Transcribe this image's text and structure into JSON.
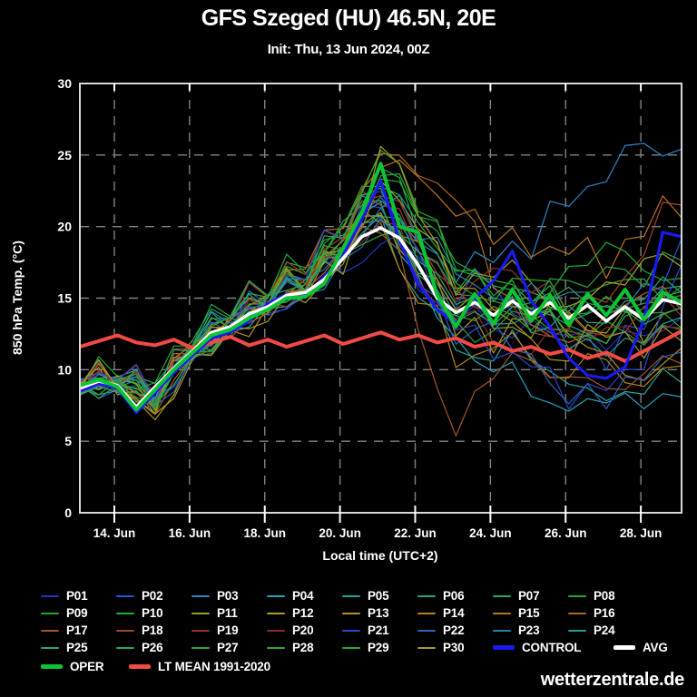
{
  "header": {
    "title": "GFS Szeged (HU) 46.5N, 20E",
    "subtitle": "Init: Thu, 13 Jun 2024, 00Z"
  },
  "footer": {
    "watermark": "wetterzentrale.de"
  },
  "chart_data": {
    "type": "line",
    "title": "GFS Szeged (HU) 46.5N, 20E",
    "subtitle": "Init: Thu, 13 Jun 2024, 00Z",
    "xlabel": "Local time (UTC+2)",
    "ylabel": "850 hPa Temp. (°C)",
    "ylim": [
      0,
      30
    ],
    "xlim_days": [
      0,
      16
    ],
    "grid": "dashed",
    "background": "#000000",
    "yticks": [
      {
        "label": "30",
        "v": 30
      },
      {
        "label": "25",
        "v": 25
      },
      {
        "label": "20",
        "v": 20
      },
      {
        "label": "15",
        "v": 15
      },
      {
        "label": "10",
        "v": 10
      },
      {
        "label": "5",
        "v": 5
      },
      {
        "label": "0",
        "v": 0
      }
    ],
    "ygrid": [
      5,
      10,
      15,
      20,
      25
    ],
    "xticks": [
      {
        "label": "14. Jun",
        "t": 0.9167
      },
      {
        "label": "16. Jun",
        "t": 2.9167
      },
      {
        "label": "18. Jun",
        "t": 4.9167
      },
      {
        "label": "20. Jun",
        "t": 6.9167
      },
      {
        "label": "22. Jun",
        "t": 8.9167
      },
      {
        "label": "24. Jun",
        "t": 10.9167
      },
      {
        "label": "26. Jun",
        "t": 12.9167
      },
      {
        "label": "28. Jun",
        "t": 14.9167
      }
    ],
    "series": [
      {
        "name": "P01",
        "color": "#2633c4",
        "kind": "member",
        "step": 1,
        "values": [
          8.6,
          9.0,
          8.0,
          11.0,
          12.8,
          14.2,
          15.2,
          17.2,
          19.0,
          16.0,
          13.5,
          12.8,
          13.5,
          12.0,
          11.5,
          12.8,
          13.9
        ]
      },
      {
        "name": "P02",
        "color": "#2750d2",
        "kind": "member",
        "step": 1,
        "values": [
          8.8,
          8.7,
          7.6,
          11.5,
          13.2,
          14.0,
          15.8,
          18.5,
          21.0,
          17.5,
          14.5,
          15.5,
          13.0,
          11.0,
          10.2,
          12.5,
          19.5
        ]
      },
      {
        "name": "P03",
        "color": "#2d86c4",
        "kind": "member",
        "step": 1,
        "values": [
          8.7,
          9.2,
          8.5,
          11.2,
          13.4,
          14.8,
          15.0,
          18.0,
          22.5,
          19.0,
          16.0,
          17.5,
          18.0,
          21.5,
          23.0,
          25.8,
          25.0
        ]
      },
      {
        "name": "P04",
        "color": "#28a3c0",
        "kind": "member",
        "step": 1,
        "values": [
          8.5,
          8.8,
          7.2,
          10.8,
          12.6,
          14.6,
          15.6,
          17.5,
          21.5,
          16.5,
          12.0,
          9.5,
          8.5,
          7.5,
          8.0,
          7.0,
          8.5
        ]
      },
      {
        "name": "P05",
        "color": "#29a49b",
        "kind": "member",
        "step": 1,
        "values": [
          8.9,
          9.1,
          7.8,
          11.4,
          13.1,
          14.3,
          15.3,
          18.2,
          20.5,
          15.0,
          11.5,
          10.5,
          11.0,
          9.0,
          7.5,
          8.5,
          9.0
        ]
      },
      {
        "name": "P06",
        "color": "#2aa67d",
        "kind": "member",
        "step": 1,
        "values": [
          8.6,
          8.9,
          8.2,
          11.6,
          13.3,
          15.0,
          16.2,
          19.0,
          22.0,
          18.0,
          14.0,
          13.0,
          14.5,
          13.5,
          12.0,
          14.0,
          15.5
        ]
      },
      {
        "name": "P07",
        "color": "#29a75c",
        "kind": "member",
        "step": 1,
        "values": [
          8.8,
          9.3,
          8.6,
          11.1,
          12.9,
          14.5,
          16.8,
          20.5,
          24.0,
          19.5,
          15.5,
          14.0,
          15.5,
          16.0,
          14.5,
          15.0,
          16.0
        ]
      },
      {
        "name": "P08",
        "color": "#25a73e",
        "kind": "member",
        "step": 1,
        "values": [
          8.7,
          9.0,
          7.9,
          11.7,
          13.6,
          15.2,
          16.0,
          19.5,
          23.0,
          20.0,
          16.5,
          15.0,
          13.5,
          14.5,
          15.5,
          16.5,
          15.0
        ]
      },
      {
        "name": "P09",
        "color": "#2ea434",
        "kind": "member",
        "step": 1,
        "values": [
          8.6,
          8.8,
          7.4,
          11.3,
          13.0,
          14.1,
          15.9,
          18.8,
          21.8,
          17.0,
          13.0,
          12.5,
          14.0,
          12.5,
          13.5,
          12.0,
          13.0
        ]
      },
      {
        "name": "P10",
        "color": "#1db32c",
        "kind": "member",
        "step": 1,
        "values": [
          8.8,
          9.1,
          8.1,
          11.0,
          12.7,
          14.7,
          16.4,
          19.2,
          23.5,
          21.0,
          17.0,
          16.0,
          14.8,
          17.0,
          18.5,
          17.0,
          16.5
        ]
      },
      {
        "name": "P11",
        "color": "#9aa21e",
        "kind": "member",
        "step": 1,
        "values": [
          8.7,
          8.6,
          6.8,
          10.9,
          12.5,
          13.8,
          15.0,
          17.0,
          20.8,
          18.5,
          14.2,
          13.2,
          12.5,
          14.0,
          13.0,
          12.0,
          14.0
        ]
      },
      {
        "name": "P12",
        "color": "#ad9e1e",
        "kind": "member",
        "step": 1,
        "values": [
          8.9,
          9.2,
          7.0,
          11.2,
          13.2,
          14.9,
          15.7,
          18.3,
          22.8,
          19.8,
          15.0,
          16.5,
          15.8,
          14.5,
          16.0,
          17.5,
          16.8
        ]
      },
      {
        "name": "P13",
        "color": "#b5941a",
        "kind": "member",
        "step": 1,
        "values": [
          8.6,
          8.7,
          6.5,
          10.7,
          12.4,
          14.0,
          15.5,
          17.8,
          21.2,
          16.8,
          12.8,
          11.5,
          13.8,
          12.8,
          11.0,
          9.5,
          11.5
        ]
      },
      {
        "name": "P14",
        "color": "#b78413",
        "kind": "member",
        "step": 1,
        "values": [
          8.8,
          9.0,
          7.5,
          11.5,
          13.5,
          14.4,
          16.1,
          18.6,
          20.2,
          14.5,
          10.5,
          11.8,
          10.5,
          9.5,
          10.8,
          9.0,
          10.0
        ]
      },
      {
        "name": "P15",
        "color": "#bd751c",
        "kind": "member",
        "step": 1,
        "values": [
          8.7,
          8.9,
          7.7,
          11.8,
          13.7,
          15.1,
          16.6,
          19.8,
          23.8,
          23.5,
          20.5,
          19.0,
          17.5,
          18.0,
          16.5,
          19.5,
          21.0
        ]
      },
      {
        "name": "P16",
        "color": "#b2661e",
        "kind": "member",
        "step": 1,
        "values": [
          8.5,
          8.8,
          7.3,
          11.1,
          12.8,
          14.2,
          15.4,
          18.1,
          24.8,
          24.0,
          22.0,
          16.0,
          13.0,
          12.0,
          13.5,
          15.0,
          14.0
        ]
      },
      {
        "name": "P17",
        "color": "#a75822",
        "kind": "member",
        "step": 1,
        "values": [
          8.6,
          9.1,
          7.1,
          10.6,
          12.3,
          13.9,
          15.1,
          17.4,
          19.5,
          13.0,
          5.5,
          9.0,
          10.5,
          9.8,
          8.5,
          9.5,
          10.5
        ]
      },
      {
        "name": "P18",
        "color": "#a04827",
        "kind": "member",
        "step": 1,
        "values": [
          8.8,
          8.9,
          7.8,
          11.4,
          13.1,
          14.6,
          15.8,
          18.9,
          22.2,
          18.8,
          15.2,
          14.2,
          12.2,
          13.2,
          14.8,
          18.0,
          21.5
        ]
      },
      {
        "name": "P19",
        "color": "#963529",
        "kind": "member",
        "step": 1,
        "values": [
          8.7,
          9.0,
          8.4,
          11.6,
          13.4,
          15.3,
          16.3,
          19.4,
          21.6,
          17.8,
          14.8,
          16.8,
          15.5,
          13.8,
          12.5,
          14.5,
          13.5
        ]
      },
      {
        "name": "P20",
        "color": "#8c2b28",
        "kind": "member",
        "step": 1,
        "values": [
          8.5,
          8.7,
          7.6,
          11.0,
          12.6,
          14.1,
          15.6,
          18.4,
          20.0,
          16.2,
          13.8,
          12.0,
          11.5,
          13.0,
          12.8,
          11.5,
          12.5
        ]
      },
      {
        "name": "P21",
        "color": "#2a49cc",
        "kind": "member",
        "step": 1,
        "values": [
          8.9,
          9.2,
          8.2,
          11.3,
          13.3,
          14.8,
          16.5,
          19.6,
          22.6,
          18.2,
          13.2,
          10.8,
          9.8,
          7.2,
          8.8,
          10.0,
          17.0
        ]
      },
      {
        "name": "P22",
        "color": "#2d63bd",
        "kind": "member",
        "step": 1,
        "values": [
          8.6,
          8.8,
          7.3,
          10.9,
          12.9,
          14.3,
          15.2,
          17.6,
          20.4,
          15.8,
          12.2,
          13.5,
          11.2,
          8.0,
          7.0,
          9.5,
          11.0
        ]
      },
      {
        "name": "P23",
        "color": "#2a82aa",
        "kind": "member",
        "step": 1,
        "values": [
          8.8,
          9.1,
          8.0,
          11.2,
          13.0,
          14.9,
          16.0,
          18.7,
          21.4,
          19.2,
          16.8,
          14.8,
          16.2,
          15.2,
          13.8,
          15.8,
          14.8
        ]
      },
      {
        "name": "P24",
        "color": "#2a9c92",
        "kind": "member",
        "step": 1,
        "values": [
          8.7,
          8.9,
          7.5,
          11.5,
          13.2,
          14.5,
          15.7,
          18.0,
          20.6,
          16.6,
          13.6,
          12.8,
          14.2,
          11.8,
          10.5,
          12.2,
          13.8
        ]
      },
      {
        "name": "P25",
        "color": "#2ba27c",
        "kind": "member",
        "step": 1,
        "values": [
          8.6,
          9.0,
          8.3,
          11.1,
          12.8,
          14.0,
          15.5,
          17.9,
          21.0,
          17.2,
          14.4,
          13.6,
          12.8,
          14.6,
          13.2,
          14.8,
          15.2
        ]
      },
      {
        "name": "P26",
        "color": "#2ca65c",
        "kind": "member",
        "step": 1,
        "values": [
          8.8,
          8.7,
          7.2,
          11.6,
          13.5,
          15.0,
          16.1,
          19.1,
          22.4,
          18.4,
          15.8,
          14.4,
          15.0,
          13.4,
          14.2,
          12.8,
          14.5
        ]
      },
      {
        "name": "P27",
        "color": "#2ca640",
        "kind": "member",
        "step": 1,
        "values": [
          8.7,
          9.2,
          7.9,
          11.0,
          12.7,
          14.4,
          15.9,
          18.5,
          23.2,
          20.5,
          17.2,
          15.6,
          14.0,
          15.8,
          16.8,
          15.5,
          17.5
        ]
      },
      {
        "name": "P28",
        "color": "#35a430",
        "kind": "member",
        "step": 1,
        "values": [
          8.5,
          8.9,
          6.9,
          11.3,
          13.1,
          14.7,
          15.3,
          17.7,
          19.8,
          16.4,
          13.4,
          14.6,
          13.2,
          12.4,
          11.8,
          13.8,
          12.8
        ]
      },
      {
        "name": "P29",
        "color": "#24ab2d",
        "kind": "member",
        "step": 1,
        "values": [
          8.9,
          9.3,
          8.8,
          11.8,
          13.8,
          15.4,
          16.7,
          20.0,
          24.9,
          20.8,
          16.4,
          14.8,
          16.0,
          14.2,
          15.5,
          14.0,
          15.8
        ]
      },
      {
        "name": "P30",
        "color": "#a89a20",
        "kind": "member",
        "step": 1,
        "values": [
          8.6,
          8.8,
          7.0,
          10.8,
          12.5,
          13.7,
          14.9,
          17.3,
          25.4,
          21.2,
          15.5,
          13.8,
          12.0,
          10.8,
          12.5,
          11.0,
          12.0
        ]
      },
      {
        "name": "CONTROL",
        "color": "#1a1af0",
        "kind": "control",
        "step": 0.5,
        "values": [
          8.5,
          9.0,
          8.7,
          7.0,
          8.4,
          9.8,
          11.0,
          12.2,
          12.6,
          13.4,
          14.6,
          15.3,
          15.2,
          16.5,
          18.0,
          20.5,
          23.2,
          19.0,
          16.0,
          14.2,
          13.2,
          15.0,
          16.2,
          18.3,
          14.8,
          13.0,
          10.8,
          9.6,
          9.4,
          10.2,
          13.5,
          19.6,
          19.3
        ]
      },
      {
        "name": "AVG",
        "color": "#ffffff",
        "kind": "avg",
        "step": 0.5,
        "values": [
          8.7,
          9.2,
          8.9,
          7.4,
          8.8,
          10.1,
          11.3,
          12.6,
          13.0,
          13.9,
          14.4,
          15.2,
          15.4,
          16.3,
          17.8,
          19.3,
          19.9,
          19.2,
          17.3,
          15.0,
          14.0,
          14.7,
          13.8,
          14.8,
          13.9,
          14.7,
          13.6,
          14.5,
          13.4,
          14.4,
          13.5,
          14.9,
          14.6
        ]
      },
      {
        "name": "OPER",
        "color": "#0cc434",
        "kind": "oper",
        "step": 0.5,
        "values": [
          8.9,
          9.3,
          8.8,
          7.2,
          8.6,
          10.0,
          11.2,
          12.4,
          12.8,
          13.6,
          14.2,
          15.0,
          15.1,
          16.0,
          18.5,
          21.0,
          24.4,
          20.0,
          19.6,
          15.2,
          13.0,
          15.3,
          13.2,
          15.6,
          13.4,
          15.2,
          13.1,
          15.3,
          13.8,
          15.6,
          13.5,
          15.4,
          14.7
        ]
      },
      {
        "name": "LT MEAN 1991-2020",
        "color": "#f24a44",
        "kind": "ltmean",
        "step": 0.5,
        "values": [
          11.6,
          12.0,
          12.4,
          11.9,
          11.7,
          12.1,
          11.5,
          11.9,
          12.3,
          11.7,
          12.1,
          11.6,
          12.0,
          12.4,
          11.8,
          12.2,
          12.6,
          12.1,
          12.4,
          11.9,
          12.2,
          11.6,
          11.9,
          11.3,
          11.6,
          11.1,
          11.4,
          10.8,
          11.2,
          10.6,
          11.3,
          12.0,
          12.7
        ]
      }
    ]
  }
}
